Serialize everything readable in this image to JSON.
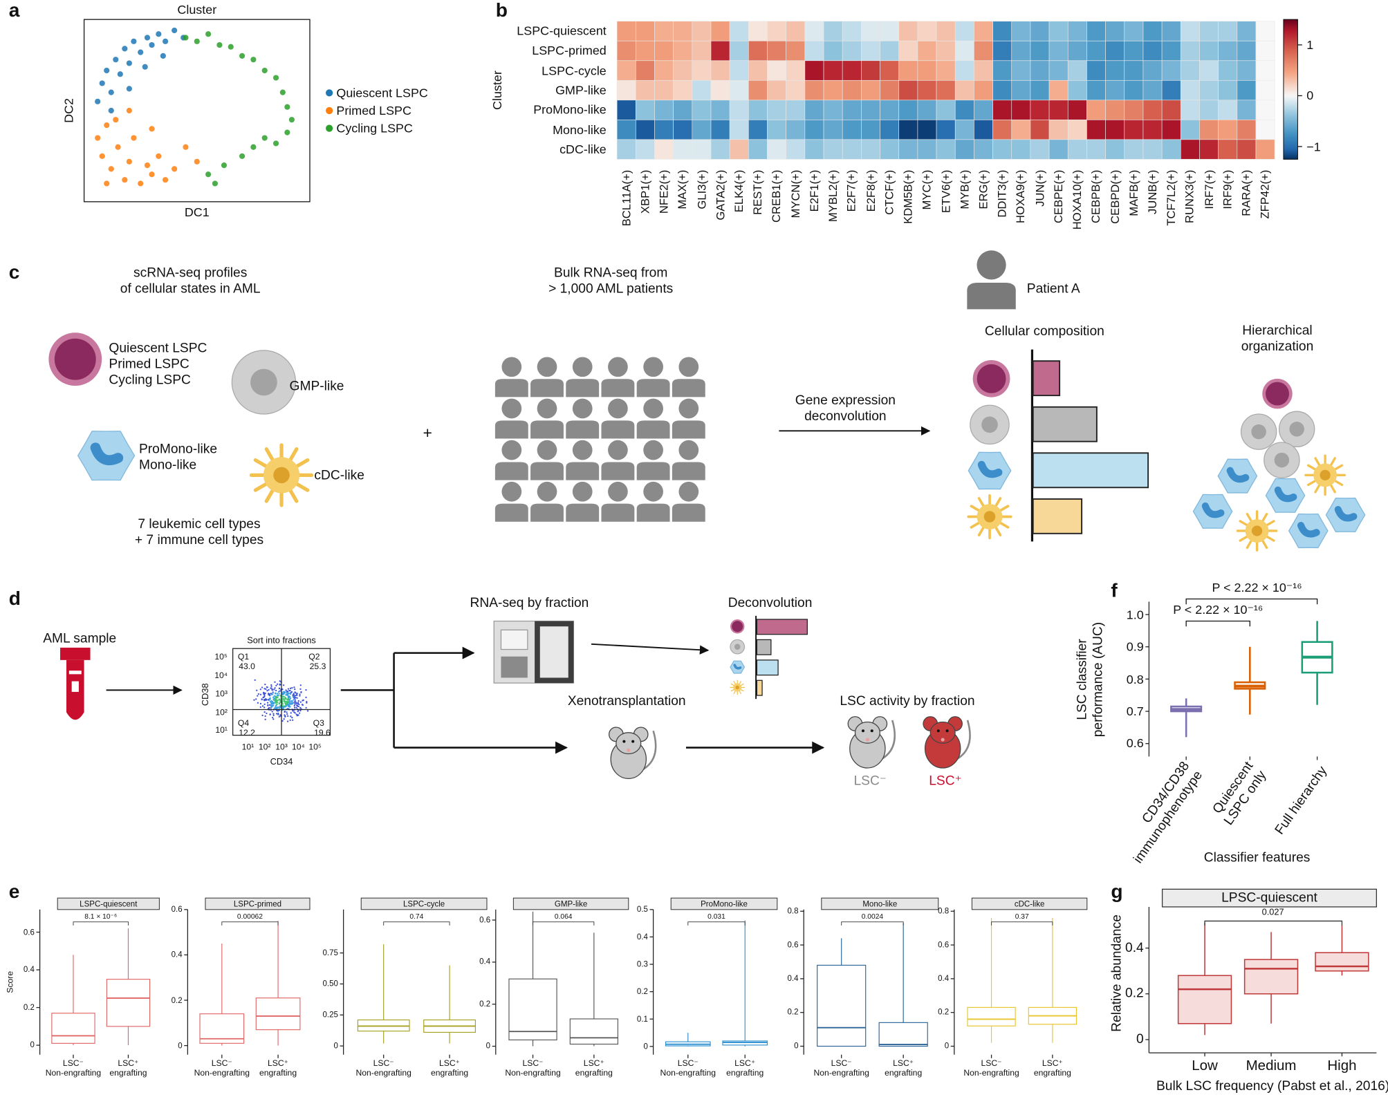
{
  "panel_labels": [
    "a",
    "b",
    "c",
    "d",
    "e",
    "f",
    "g"
  ],
  "chart_data": [
    {
      "type": "scatter",
      "title": "Cluster",
      "xlabel": "DC1",
      "ylabel": "DC2",
      "xlim": [
        0,
        1
      ],
      "ylim": [
        0,
        1
      ],
      "series": [
        {
          "name": "Quiescent LSPC",
          "color": "#1f77b4",
          "x": [
            0.06,
            0.08,
            0.1,
            0.12,
            0.14,
            0.16,
            0.18,
            0.2,
            0.22,
            0.25,
            0.28,
            0.3,
            0.33,
            0.36,
            0.4,
            0.44,
            0.12,
            0.2,
            0.27,
            0.35
          ],
          "values": [
            0.55,
            0.65,
            0.72,
            0.6,
            0.78,
            0.7,
            0.84,
            0.76,
            0.88,
            0.82,
            0.9,
            0.86,
            0.92,
            0.88,
            0.94,
            0.9,
            0.5,
            0.62,
            0.74,
            0.8
          ]
        },
        {
          "name": "Primed LSPC",
          "color": "#ff7f0e",
          "x": [
            0.06,
            0.08,
            0.1,
            0.12,
            0.15,
            0.18,
            0.2,
            0.22,
            0.25,
            0.28,
            0.3,
            0.33,
            0.36,
            0.4,
            0.1,
            0.14,
            0.2,
            0.3,
            0.45,
            0.5
          ],
          "values": [
            0.35,
            0.25,
            0.42,
            0.18,
            0.3,
            0.12,
            0.22,
            0.35,
            0.1,
            0.2,
            0.15,
            0.25,
            0.12,
            0.18,
            0.1,
            0.45,
            0.5,
            0.4,
            0.3,
            0.22
          ]
        },
        {
          "name": "Cycling LSPC",
          "color": "#2ca02c",
          "x": [
            0.45,
            0.5,
            0.55,
            0.6,
            0.65,
            0.7,
            0.75,
            0.8,
            0.85,
            0.88,
            0.9,
            0.92,
            0.9,
            0.85,
            0.8,
            0.75,
            0.7,
            0.62,
            0.55,
            0.58
          ],
          "values": [
            0.9,
            0.88,
            0.92,
            0.86,
            0.85,
            0.8,
            0.78,
            0.72,
            0.68,
            0.6,
            0.52,
            0.45,
            0.38,
            0.32,
            0.35,
            0.3,
            0.25,
            0.2,
            0.15,
            0.1
          ]
        }
      ]
    },
    {
      "type": "heatmap",
      "ylabel": "Cluster",
      "rows": [
        "LSPC-quiescent",
        "LSPC-primed",
        "LSPC-cycle",
        "GMP-like",
        "ProMono-like",
        "Mono-like",
        "cDC-like"
      ],
      "columns": [
        "BCL11A(+)",
        "XBP1(+)",
        "NFE2(+)",
        "MAX(+)",
        "GLI3(+)",
        "GATA2(+)",
        "ELK4(+)",
        "REST(+)",
        "CREB1(+)",
        "MYCN(+)",
        "E2F1(+)",
        "MYBL2(+)",
        "E2F7(+)",
        "E2F8(+)",
        "CTCF(+)",
        "KDM5B(+)",
        "MYC(+)",
        "ETV6(+)",
        "MYB(+)",
        "ERG(+)",
        "DDIT3(+)",
        "HOXA9(+)",
        "JUN(+)",
        "CEBPE(+)",
        "HOXA10(+)",
        "CEBPB(+)",
        "CEBPD(+)",
        "MAFB(+)",
        "JUNB(+)",
        "TCF7L2(+)",
        "RUNX3(+)",
        "IRF7(+)",
        "IRF9(+)",
        "RARA(+)",
        "ZFP42(+)"
      ],
      "values": [
        [
          0.5,
          0.5,
          0.4,
          0.4,
          0.3,
          0.5,
          -0.2,
          0.1,
          0.2,
          0.3,
          -0.1,
          -0.3,
          -0.2,
          -0.1,
          -0.1,
          0.3,
          0.2,
          0.3,
          -0.2,
          0.4,
          -0.8,
          -0.5,
          -0.6,
          -0.4,
          -0.5,
          -0.7,
          -0.6,
          -0.5,
          -0.7,
          -0.6,
          -0.2,
          -0.3,
          -0.3,
          -0.5,
          0.0
        ],
        [
          0.6,
          0.5,
          0.5,
          0.4,
          0.3,
          1.2,
          -0.3,
          0.8,
          0.7,
          0.6,
          -0.2,
          -0.4,
          -0.3,
          -0.2,
          -0.3,
          0.2,
          0.4,
          0.3,
          -0.1,
          0.6,
          -0.9,
          -0.6,
          -0.7,
          -0.5,
          -0.6,
          -0.7,
          -0.8,
          -0.7,
          -0.8,
          -0.7,
          -0.3,
          -0.4,
          -0.5,
          -0.6,
          0.0
        ],
        [
          0.4,
          0.7,
          0.4,
          0.3,
          0.2,
          0.3,
          -0.2,
          0.3,
          0.1,
          0.2,
          1.3,
          1.2,
          1.2,
          1.1,
          0.9,
          0.5,
          0.5,
          0.4,
          -0.2,
          0.3,
          -0.7,
          -0.5,
          -0.6,
          -0.5,
          -0.3,
          -0.8,
          -0.7,
          -0.7,
          -0.6,
          -0.5,
          -0.3,
          -0.2,
          -0.4,
          -0.5,
          0.0
        ],
        [
          0.1,
          0.3,
          0.3,
          0.2,
          -0.2,
          0.1,
          -0.1,
          0.6,
          0.3,
          0.2,
          0.6,
          0.5,
          0.6,
          0.5,
          0.7,
          1.0,
          0.9,
          0.8,
          0.3,
          0.5,
          -0.8,
          -0.6,
          -0.7,
          0.4,
          -0.4,
          -0.7,
          -0.6,
          -0.7,
          -0.6,
          -0.9,
          -0.2,
          -0.3,
          -0.4,
          -0.7,
          0.0
        ],
        [
          -1.1,
          -0.4,
          -0.5,
          -0.6,
          -0.4,
          -0.5,
          -0.2,
          -0.4,
          -0.3,
          -0.3,
          -0.6,
          -0.5,
          -0.6,
          -0.6,
          -0.6,
          -0.7,
          -0.6,
          -0.4,
          -0.8,
          -0.6,
          1.3,
          1.3,
          1.2,
          1.2,
          1.3,
          0.5,
          0.6,
          0.7,
          0.9,
          1.0,
          -0.2,
          -0.3,
          -0.2,
          -0.5,
          0.0
        ],
        [
          -0.8,
          -1.1,
          -0.9,
          -1.0,
          -0.6,
          -0.9,
          -0.2,
          -0.9,
          -0.4,
          -0.5,
          -0.7,
          -0.6,
          -0.7,
          -0.7,
          -0.9,
          -1.2,
          -1.2,
          -1.0,
          -0.5,
          -1.1,
          0.8,
          0.4,
          1.0,
          0.3,
          0.2,
          1.3,
          1.3,
          1.2,
          1.2,
          1.3,
          -0.4,
          0.6,
          0.5,
          0.7,
          0.0
        ],
        [
          -0.3,
          -0.2,
          0.1,
          -0.1,
          -0.1,
          -0.3,
          0.3,
          -0.4,
          -0.1,
          -0.2,
          -0.4,
          -0.3,
          -0.3,
          -0.3,
          -0.4,
          -0.5,
          -0.5,
          -0.4,
          -0.6,
          -0.5,
          -0.4,
          -0.4,
          -0.3,
          -0.5,
          -0.3,
          -0.3,
          -0.4,
          -0.3,
          -0.3,
          -0.4,
          1.3,
          1.2,
          0.9,
          1.0,
          0.5
        ]
      ],
      "clim": [
        -1.25,
        1.5
      ],
      "cticks": [
        {
          "value": -1,
          "label": "−1"
        },
        0,
        1
      ]
    },
    {
      "type": "box",
      "title": "LSPC-quiescent",
      "ylabel": "Score",
      "categories": [
        "LSC⁻\nNon-engrafting",
        "LSC⁺\nengrafting"
      ],
      "color": "#e06666",
      "annotation": "8.1 × 10⁻⁶",
      "ylim": [
        -0.05,
        0.72
      ],
      "yticks": [
        0,
        0.2,
        0.4,
        0.6
      ],
      "boxes": [
        {
          "min": 0,
          "q1": 0.01,
          "median": 0.05,
          "q3": 0.17,
          "max": 0.48
        },
        {
          "min": 0,
          "q1": 0.1,
          "median": 0.25,
          "q3": 0.35,
          "max": 0.62
        }
      ]
    },
    {
      "type": "box",
      "title": "LSPC-primed",
      "categories": [
        "LSC⁻\nNon-engrafting",
        "LSC⁺\nengrafting"
      ],
      "color": "#e06666",
      "annotation": "0.00062",
      "ylim": [
        -0.04,
        0.6
      ],
      "yticks": [
        0,
        0.2,
        0.4,
        0.6
      ],
      "boxes": [
        {
          "min": 0,
          "q1": 0.01,
          "median": 0.03,
          "q3": 0.14,
          "max": 0.45
        },
        {
          "min": 0,
          "q1": 0.07,
          "median": 0.13,
          "q3": 0.21,
          "max": 0.55
        }
      ]
    },
    {
      "type": "box",
      "title": "LSPC-cycle",
      "categories": [
        "LSC⁻\nNon-engrafting",
        "LSC⁺\nengrafting"
      ],
      "color": "#a5a020",
      "annotation": "0.74",
      "ylim": [
        -0.07,
        1.1
      ],
      "yticks": [
        0,
        0.25,
        {
          "value": 0.5,
          "label": "0.50"
        },
        0.75
      ],
      "boxes": [
        {
          "min": 0.02,
          "q1": 0.12,
          "median": 0.16,
          "q3": 0.21,
          "max": 0.82
        },
        {
          "min": 0.02,
          "q1": 0.11,
          "median": 0.16,
          "q3": 0.21,
          "max": 0.65
        }
      ]
    },
    {
      "type": "box",
      "title": "GMP-like",
      "categories": [
        "LSC⁻\nNon-engrafting",
        "LSC⁺\nengrafting"
      ],
      "color": "#555555",
      "annotation": "0.064",
      "ylim": [
        -0.04,
        0.65
      ],
      "yticks": [
        0,
        0.2,
        0.4,
        0.6
      ],
      "boxes": [
        {
          "min": 0,
          "q1": 0.03,
          "median": 0.07,
          "q3": 0.32,
          "max": 0.64
        },
        {
          "min": 0,
          "q1": 0.01,
          "median": 0.04,
          "q3": 0.13,
          "max": 0.54
        }
      ]
    },
    {
      "type": "box",
      "title": "ProMono-like",
      "categories": [
        "LSC⁻\nNon-engrafting",
        "LSC⁺\nengrafting"
      ],
      "color": "#2b8fd0",
      "annotation": "0.031",
      "ylim": [
        -0.03,
        0.5
      ],
      "yticks": [
        0,
        0.1,
        0.2,
        0.3,
        0.4,
        0.5
      ],
      "boxes": [
        {
          "min": 0,
          "q1": 0.002,
          "median": 0.008,
          "q3": 0.017,
          "max": 0.05
        },
        {
          "min": 0,
          "q1": 0.005,
          "median": 0.015,
          "q3": 0.02,
          "max": 0.46
        }
      ]
    },
    {
      "type": "box",
      "title": "Mono-like",
      "categories": [
        "LSC⁻\nNon-engrafting",
        "LSC⁺\nengrafting"
      ],
      "color": "#2a6496",
      "annotation": "0.0024",
      "ylim": [
        -0.05,
        0.81
      ],
      "yticks": [
        0,
        0.2,
        0.4,
        0.6,
        0.8
      ],
      "boxes": [
        {
          "min": 0,
          "q1": 0,
          "median": 0.11,
          "q3": 0.48,
          "max": 0.64
        },
        {
          "min": 0,
          "q1": 0,
          "median": 0.01,
          "q3": 0.14,
          "max": 0.73
        }
      ]
    },
    {
      "type": "box",
      "title": "cDC-like",
      "categories": [
        "LSC⁻\nNon-engrafting",
        "LSC⁺\nengrafting"
      ],
      "color": "#e8c52a",
      "annotation": "0.37",
      "ylim": [
        -0.05,
        0.81
      ],
      "yticks": [
        0,
        0.2,
        0.4,
        0.6,
        0.8
      ],
      "boxes": [
        {
          "min": 0.02,
          "q1": 0.12,
          "median": 0.16,
          "q3": 0.23,
          "max": 0.76
        },
        {
          "min": 0.02,
          "q1": 0.13,
          "median": 0.18,
          "q3": 0.23,
          "max": 0.76
        }
      ]
    },
    {
      "type": "box",
      "ylabel": "LSC classifier\nperformance (AUC)",
      "xlabel": "Classifier features",
      "categories": [
        "CD34/CD38\nimmunophenotype",
        "Quiescent\nLSPC only",
        "Full hierarchy"
      ],
      "colors": [
        "#7b6fb0",
        "#d95f02",
        "#1b9e77"
      ],
      "annotations": [
        "P < 2.22 × 10⁻¹⁶",
        "P < 2.22 × 10⁻¹⁶"
      ],
      "ylim": [
        0.56,
        1.04
      ],
      "yticks": [
        0.6,
        0.7,
        0.8,
        0.9,
        {
          "value": 1,
          "label": "1.0"
        }
      ],
      "boxes": [
        {
          "min": 0.62,
          "q1": 0.7,
          "median": 0.706,
          "q3": 0.715,
          "max": 0.74
        },
        {
          "min": 0.69,
          "q1": 0.77,
          "median": 0.778,
          "q3": 0.79,
          "max": 0.9
        },
        {
          "min": 0.72,
          "q1": 0.82,
          "median": 0.868,
          "q3": 0.915,
          "max": 0.98
        }
      ]
    },
    {
      "type": "box",
      "title": "LPSC-quiescent",
      "ylabel": "Relative abundance",
      "xlabel": "Bulk LSC frequency (Pabst et al., 2016)",
      "categories": [
        "Low",
        "Medium",
        "High"
      ],
      "color": "#c0393b",
      "annotation": "0.027",
      "ylim": [
        -0.058,
        0.58
      ],
      "yticks": [
        0,
        0.2,
        0.4
      ],
      "boxes": [
        {
          "min": 0.02,
          "q1": 0.07,
          "median": 0.22,
          "q3": 0.28,
          "max": 0.51
        },
        {
          "min": 0.07,
          "q1": 0.2,
          "median": 0.31,
          "q3": 0.35,
          "max": 0.47
        },
        {
          "min": 0.28,
          "q1": 0.3,
          "median": 0.32,
          "q3": 0.38,
          "max": 0.5
        }
      ]
    }
  ],
  "diagram_c": {
    "left_title": "scRNA-seq profiles\nof cellular states in AML",
    "lspc_states": "Quiescent LSPC\nPrimed LSPC\nCycling LSPC",
    "gmp": "GMP-like",
    "mono": "ProMono-like\nMono-like",
    "cdc": "cDC-like",
    "cell_types": "7 leukemic cell types\n+ 7 immune cell types",
    "plus": "+",
    "bulk_title": "Bulk RNA-seq from\n> 1,000 AML patients",
    "arrow_label": "Gene expression\ndeconvolution",
    "patient": "Patient A",
    "composition": "Cellular composition",
    "hierarchy": "Hierarchical\norganization"
  },
  "diagram_d": {
    "aml_sample": "AML sample",
    "sort_title": "Sort into fractions",
    "quadrants": [
      {
        "name": "Q1",
        "value": "43.0"
      },
      {
        "name": "Q2",
        "value": "25.3"
      },
      {
        "name": "Q4",
        "value": "12.2"
      },
      {
        "name": "Q3",
        "value": "19.6"
      }
    ],
    "facs_x_label": "CD34",
    "facs_y_label": "CD38",
    "facs_ticks": [
      "10¹",
      "10²",
      "10³",
      "10⁴",
      "10⁵"
    ],
    "rnaseq": "RNA-seq by fraction",
    "deconvolution": "Deconvolution",
    "xeno": "Xenotransplantation",
    "lsc_activity": "LSC activity by fraction",
    "lsc_neg": "LSC⁻",
    "lsc_pos": "LSC⁺"
  }
}
